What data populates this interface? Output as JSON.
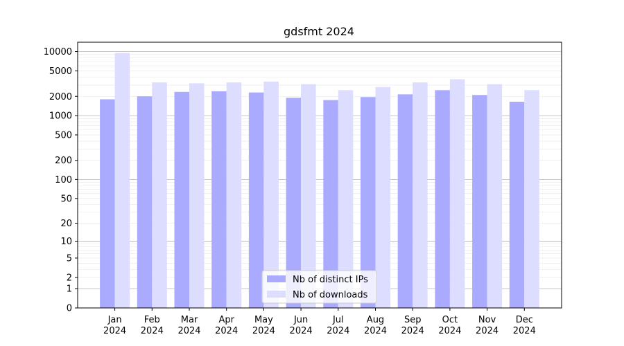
{
  "chart_data": {
    "type": "bar",
    "title": "gdsfmt 2024",
    "xlabel": "",
    "ylabel": "",
    "yscale": "symlog",
    "ylim": [
      0,
      14000
    ],
    "yticks": [
      0,
      1,
      2,
      5,
      10,
      20,
      50,
      100,
      200,
      500,
      1000,
      2000,
      5000,
      10000
    ],
    "ytick_labels": [
      "0",
      "1",
      "2",
      "5",
      "10",
      "20",
      "50",
      "100",
      "200",
      "500",
      "1000",
      "2000",
      "5000",
      "10000"
    ],
    "grid": true,
    "legend_position": "bottom-center",
    "categories": [
      [
        "Jan",
        "2024"
      ],
      [
        "Feb",
        "2024"
      ],
      [
        "Mar",
        "2024"
      ],
      [
        "Apr",
        "2024"
      ],
      [
        "May",
        "2024"
      ],
      [
        "Jun",
        "2024"
      ],
      [
        "Jul",
        "2024"
      ],
      [
        "Aug",
        "2024"
      ],
      [
        "Sep",
        "2024"
      ],
      [
        "Oct",
        "2024"
      ],
      [
        "Nov",
        "2024"
      ],
      [
        "Dec",
        "2024"
      ]
    ],
    "series": [
      {
        "name": "Nb of distinct IPs",
        "color": "#aaaaff",
        "values": [
          1800,
          2000,
          2350,
          2400,
          2300,
          1900,
          1750,
          1950,
          2150,
          2500,
          2100,
          1650
        ]
      },
      {
        "name": "Nb of downloads",
        "color": "#ddddff",
        "values": [
          9500,
          3300,
          3200,
          3300,
          3400,
          3100,
          2500,
          2800,
          3300,
          3700,
          3100,
          2500
        ]
      }
    ]
  }
}
